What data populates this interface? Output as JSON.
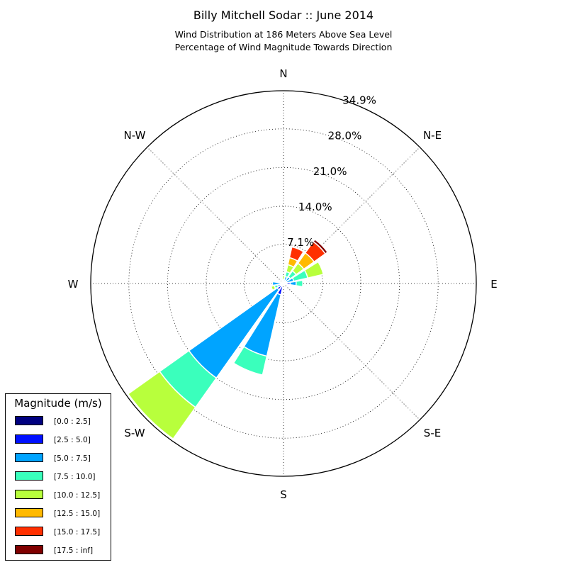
{
  "chart_data": {
    "type": "windrose",
    "title": "Billy Mitchell Sodar :: June 2014",
    "subtitle_lines": [
      "Wind Distribution at 186 Meters Above Sea Level",
      "Percentage of Wind Magnitude Towards Direction"
    ],
    "direction_labels": [
      "N",
      "N-E",
      "E",
      "S-E",
      "S",
      "S-W",
      "W",
      "N-W"
    ],
    "radial_ticks": [
      {
        "value": 7.1,
        "label": "7.1%"
      },
      {
        "value": 14.0,
        "label": "14.0%"
      },
      {
        "value": 21.0,
        "label": "21.0%"
      },
      {
        "value": 28.0,
        "label": "28.0%"
      },
      {
        "value": 34.9,
        "label": "34.9%"
      }
    ],
    "rmax": 34.9,
    "legend_title": "Magnitude (m/s)",
    "legend_placement": "lower-left",
    "grid": true,
    "bins": [
      {
        "label": "[0.0 : 2.5]",
        "color": "#000080"
      },
      {
        "label": "[2.5 : 5.0]",
        "color": "#0010ff"
      },
      {
        "label": "[5.0 : 7.5]",
        "color": "#00a4ff"
      },
      {
        "label": "[7.5 : 10.0]",
        "color": "#3affbc"
      },
      {
        "label": "[10.0 : 12.5]",
        "color": "#b8ff3c"
      },
      {
        "label": "[12.5 : 15.0]",
        "color": "#ffb900"
      },
      {
        "label": "[15.0 : 17.5]",
        "color": "#ff3000"
      },
      {
        "label": "[17.5 : inf]",
        "color": "#800000"
      }
    ],
    "sectors": [
      {
        "direction_deg": 0,
        "cumulative_percent": [
          0.2,
          0.4,
          0.7,
          0.7,
          1.4,
          1.4,
          1.4,
          1.4
        ]
      },
      {
        "direction_deg": 22.5,
        "cumulative_percent": [
          0.2,
          0.4,
          1.3,
          2.2,
          3.5,
          4.8,
          6.8,
          6.8
        ]
      },
      {
        "direction_deg": 45,
        "cumulative_percent": [
          0.2,
          0.4,
          1.5,
          2.8,
          4.5,
          6.8,
          9.3,
          9.8
        ]
      },
      {
        "direction_deg": 67.5,
        "cumulative_percent": [
          0.3,
          0.6,
          1.9,
          4.5,
          7.4,
          7.4,
          7.4,
          7.4
        ]
      },
      {
        "direction_deg": 90,
        "cumulative_percent": [
          0.6,
          1.2,
          2.3,
          3.5,
          3.5,
          3.5,
          3.5,
          3.5
        ]
      },
      {
        "direction_deg": 112.5,
        "cumulative_percent": [
          0.1,
          0.1,
          0.1,
          0.1,
          0.1,
          0.1,
          0.1,
          0.1
        ]
      },
      {
        "direction_deg": 135,
        "cumulative_percent": [
          0.1,
          0.2,
          0.2,
          0.2,
          0.2,
          0.2,
          0.2,
          0.2
        ]
      },
      {
        "direction_deg": 157.5,
        "cumulative_percent": [
          0.3,
          0.4,
          0.4,
          0.4,
          0.4,
          0.4,
          0.4,
          0.4
        ]
      },
      {
        "direction_deg": 180,
        "cumulative_percent": [
          0.3,
          0.4,
          0.4,
          0.4,
          0.4,
          0.4,
          0.4,
          0.4
        ]
      },
      {
        "direction_deg": 202.5,
        "cumulative_percent": [
          0.5,
          2.1,
          13.5,
          17.0,
          17.0,
          17.0,
          17.0,
          17.0
        ]
      },
      {
        "direction_deg": 225,
        "cumulative_percent": [
          0.6,
          1.4,
          21.0,
          27.5,
          34.5,
          34.5,
          34.5,
          34.5
        ]
      },
      {
        "direction_deg": 247.5,
        "cumulative_percent": [
          0.3,
          0.6,
          1.1,
          1.7,
          2.3,
          2.3,
          2.3,
          2.3
        ]
      },
      {
        "direction_deg": 270,
        "cumulative_percent": [
          0.2,
          0.4,
          2.0,
          2.0,
          2.0,
          2.0,
          2.0,
          2.0
        ]
      },
      {
        "direction_deg": 292.5,
        "cumulative_percent": [
          0.3,
          0.5,
          0.5,
          0.5,
          0.5,
          0.5,
          0.5,
          0.5
        ]
      },
      {
        "direction_deg": 315,
        "cumulative_percent": [
          0.3,
          0.5,
          0.5,
          0.5,
          0.5,
          0.5,
          0.5,
          0.5
        ]
      },
      {
        "direction_deg": 337.5,
        "cumulative_percent": [
          0.3,
          0.5,
          0.5,
          0.5,
          0.5,
          0.5,
          0.5,
          0.5
        ]
      }
    ]
  }
}
